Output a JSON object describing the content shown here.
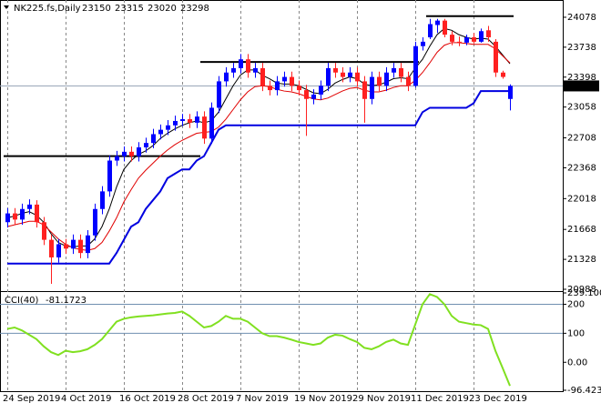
{
  "chart_data": [
    {
      "type": "candlestick",
      "title": "NK225.fs,Daily",
      "categories": [
        "24 Sep 2019",
        null,
        null,
        null,
        null,
        null,
        null,
        null,
        "4 Oct 2019",
        null,
        null,
        null,
        null,
        null,
        null,
        null,
        "16 Oct 2019",
        null,
        null,
        null,
        null,
        null,
        null,
        null,
        "28 Oct 2019",
        null,
        null,
        null,
        null,
        null,
        null,
        null,
        "7 Nov 2019",
        null,
        null,
        null,
        null,
        null,
        null,
        null,
        "19 Nov 2019",
        null,
        null,
        null,
        null,
        null,
        null,
        null,
        "29 Nov 2019",
        null,
        null,
        null,
        null,
        null,
        null,
        null,
        "11 Dec 2019",
        null,
        null,
        null,
        null,
        null,
        null,
        null,
        "23 Dec 2019",
        null,
        null,
        null,
        null,
        null
      ],
      "open": [
        21750,
        21850,
        21780,
        21900,
        21950,
        21750,
        21550,
        21350,
        21500,
        21450,
        21550,
        21400,
        21600,
        21900,
        22100,
        22450,
        22500,
        22550,
        22500,
        22600,
        22650,
        22750,
        22800,
        22850,
        22900,
        22920,
        22880,
        22950,
        22700,
        23050,
        23350,
        23450,
        23500,
        23600,
        23450,
        23500,
        23300,
        23250,
        23350,
        23400,
        23300,
        23250,
        23150,
        23200,
        23300,
        23500,
        23450,
        23400,
        23450,
        23350,
        23150,
        23400,
        23300,
        23450,
        23500,
        23400,
        23300,
        23750,
        23850,
        23990,
        24040,
        23880,
        23800,
        23790,
        23850,
        23800,
        23930,
        23800,
        23450,
        23150
      ],
      "high": [
        21910,
        21910,
        21960,
        22010,
        22000,
        21810,
        21610,
        21560,
        21560,
        21610,
        21610,
        21660,
        21960,
        22160,
        22510,
        22560,
        22610,
        22610,
        22660,
        22710,
        22810,
        22860,
        22910,
        22960,
        22980,
        22980,
        23010,
        23010,
        23110,
        23410,
        23510,
        23560,
        23660,
        23660,
        23560,
        23560,
        23360,
        23410,
        23460,
        23460,
        23360,
        23310,
        23260,
        23360,
        23560,
        23560,
        23510,
        23510,
        23510,
        23410,
        23460,
        23460,
        23510,
        23560,
        23560,
        23460,
        23800,
        23850,
        24060,
        24060,
        24060,
        23920,
        23860,
        23880,
        23900,
        23950,
        23980,
        23830,
        23470,
        23315
      ],
      "low": [
        21690,
        21720,
        21720,
        21840,
        21690,
        21490,
        21050,
        21290,
        21390,
        21390,
        21340,
        21340,
        21540,
        21840,
        22040,
        22390,
        22440,
        22440,
        22440,
        22540,
        22590,
        22690,
        22740,
        22790,
        22840,
        22820,
        22820,
        22640,
        22640,
        22990,
        23290,
        23390,
        23440,
        23390,
        23390,
        23240,
        23190,
        23190,
        23290,
        23240,
        23190,
        22730,
        23090,
        23140,
        23240,
        23390,
        23340,
        23340,
        23290,
        22880,
        23090,
        23240,
        23240,
        23390,
        23340,
        23240,
        23280,
        23700,
        23830,
        23900,
        23850,
        23760,
        23750,
        23760,
        23780,
        23790,
        23800,
        23400,
        23380,
        23020
      ],
      "close": [
        21850,
        21780,
        21900,
        21950,
        21750,
        21550,
        21350,
        21500,
        21450,
        21550,
        21400,
        21600,
        21900,
        22100,
        22450,
        22500,
        22550,
        22500,
        22600,
        22650,
        22750,
        22800,
        22850,
        22900,
        22920,
        22880,
        22950,
        22700,
        23050,
        23350,
        23450,
        23500,
        23600,
        23450,
        23500,
        23300,
        23250,
        23350,
        23400,
        23300,
        23250,
        23150,
        23200,
        23300,
        23500,
        23450,
        23400,
        23450,
        23350,
        23150,
        23400,
        23300,
        23450,
        23500,
        23400,
        23300,
        23750,
        23800,
        24000,
        24040,
        23880,
        23800,
        23790,
        23850,
        23800,
        23920,
        23850,
        23450,
        23400,
        23298
      ],
      "up_color": "#0000ff",
      "down_color": "#ff2020",
      "overlays": [
        {
          "color": "#000000",
          "width": 1,
          "values": [
            21800,
            21820,
            21850,
            21870,
            21830,
            21750,
            21620,
            21520,
            21480,
            21470,
            21480,
            21480,
            21560,
            21700,
            21900,
            22150,
            22350,
            22450,
            22520,
            22560,
            22620,
            22700,
            22760,
            22810,
            22850,
            22880,
            22900,
            22880,
            22900,
            23000,
            23150,
            23300,
            23420,
            23480,
            23480,
            23420,
            23380,
            23330,
            23320,
            23320,
            23300,
            23260,
            23220,
            23210,
            23260,
            23330,
            23370,
            23400,
            23380,
            23320,
            23300,
            23310,
            23340,
            23380,
            23390,
            23380,
            23500,
            23600,
            23750,
            23880,
            23950,
            23930,
            23880,
            23850,
            23830,
            23840,
            23830,
            23750,
            23650,
            23550
          ]
        },
        {
          "color": "#e00000",
          "width": 1,
          "values": [
            21700,
            21720,
            21740,
            21760,
            21760,
            21720,
            21640,
            21560,
            21500,
            21460,
            21440,
            21430,
            21450,
            21520,
            21650,
            21800,
            21980,
            22120,
            22250,
            22340,
            22420,
            22500,
            22570,
            22630,
            22680,
            22720,
            22760,
            22770,
            22780,
            22830,
            22920,
            23030,
            23140,
            23230,
            23290,
            23300,
            23290,
            23260,
            23240,
            23230,
            23210,
            23180,
            23150,
            23140,
            23160,
            23200,
            23240,
            23270,
            23280,
            23250,
            23230,
            23230,
            23250,
            23280,
            23300,
            23300,
            23360,
            23450,
            23560,
            23680,
            23760,
            23790,
            23790,
            23780,
            23770,
            23770,
            23770,
            23720,
            23640,
            23560
          ]
        },
        {
          "color": "#0000e0",
          "width": 2,
          "values": [
            21280,
            21280,
            21280,
            21280,
            21280,
            21280,
            21280,
            21280,
            21280,
            21280,
            21280,
            21280,
            21280,
            21280,
            21280,
            21400,
            21550,
            21700,
            21750,
            21900,
            22000,
            22100,
            22250,
            22300,
            22350,
            22350,
            22450,
            22500,
            22650,
            22800,
            22850,
            22850,
            22850,
            22850,
            22850,
            22850,
            22850,
            22850,
            22850,
            22850,
            22850,
            22850,
            22850,
            22850,
            22850,
            22850,
            22850,
            22850,
            22850,
            22850,
            22850,
            22850,
            22850,
            22850,
            22850,
            22850,
            22850,
            23000,
            23050,
            23050,
            23050,
            23050,
            23050,
            23050,
            23100,
            23240,
            23240,
            23240,
            23240,
            23240
          ]
        }
      ],
      "levels": [
        {
          "value": 22500,
          "start": 0,
          "end": 26
        },
        {
          "value": 23570,
          "start": 27,
          "end": 56
        },
        {
          "value": 24090,
          "start": 58,
          "end": 69
        }
      ],
      "level_color": "#000000",
      "ylim": [
        20988,
        24274
      ],
      "yticks": [
        24078,
        23738,
        23398,
        23058,
        22708,
        22368,
        22018,
        21668,
        21328,
        20988
      ],
      "grid": true
    },
    {
      "type": "line",
      "title": "CCI(40)",
      "color": "#80e020",
      "values": [
        115,
        120,
        110,
        95,
        80,
        55,
        35,
        25,
        40,
        35,
        38,
        45,
        60,
        80,
        110,
        140,
        150,
        155,
        158,
        160,
        162,
        165,
        168,
        170,
        175,
        160,
        140,
        120,
        125,
        140,
        160,
        150,
        150,
        140,
        120,
        100,
        90,
        90,
        85,
        78,
        70,
        65,
        60,
        65,
        85,
        95,
        92,
        80,
        70,
        50,
        45,
        55,
        70,
        78,
        65,
        60,
        130,
        200,
        235,
        225,
        200,
        160,
        140,
        135,
        130,
        128,
        115,
        40,
        -20,
        -81.1723
      ],
      "ylim": [
        -96.4234,
        239.1008
      ],
      "yticks": [
        239.1008,
        200,
        100,
        {
          "value": 0,
          "label": "0.00"
        },
        -96.4234
      ],
      "level_lines": [
        200,
        100
      ]
    }
  ]
}
